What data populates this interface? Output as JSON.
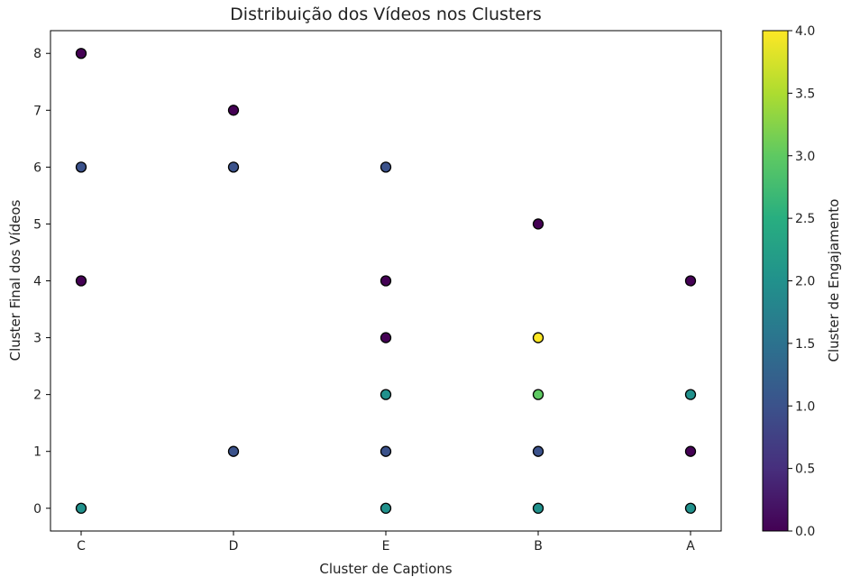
{
  "chart_data": {
    "type": "scatter",
    "title": "Distribuição dos Vídeos nos Clusters",
    "xlabel": "Cluster de Captions",
    "ylabel": "Cluster Final dos Vídeos",
    "categories": [
      "C",
      "D",
      "E",
      "B",
      "A"
    ],
    "yticks": [
      "0",
      "1",
      "2",
      "3",
      "4",
      "5",
      "6",
      "7",
      "8"
    ],
    "ylim": [
      -0.4,
      8.4
    ],
    "grid": false,
    "colorbar": {
      "label": "Cluster de Engajamento",
      "colormap": "viridis",
      "range": [
        0.0,
        4.0
      ],
      "ticks": [
        "0.0",
        "0.5",
        "1.0",
        "1.5",
        "2.0",
        "2.5",
        "3.0",
        "3.5",
        "4.0"
      ]
    },
    "points": [
      {
        "x": "C",
        "y": 8,
        "c": 0
      },
      {
        "x": "C",
        "y": 6,
        "c": 1
      },
      {
        "x": "C",
        "y": 4,
        "c": 0
      },
      {
        "x": "C",
        "y": 0,
        "c": 2
      },
      {
        "x": "D",
        "y": 7,
        "c": 0
      },
      {
        "x": "D",
        "y": 6,
        "c": 1
      },
      {
        "x": "D",
        "y": 1,
        "c": 1
      },
      {
        "x": "E",
        "y": 6,
        "c": 1
      },
      {
        "x": "E",
        "y": 4,
        "c": 0
      },
      {
        "x": "E",
        "y": 3,
        "c": 0
      },
      {
        "x": "E",
        "y": 2,
        "c": 2
      },
      {
        "x": "E",
        "y": 1,
        "c": 1
      },
      {
        "x": "E",
        "y": 0,
        "c": 2
      },
      {
        "x": "B",
        "y": 5,
        "c": 0
      },
      {
        "x": "B",
        "y": 3,
        "c": 4
      },
      {
        "x": "B",
        "y": 2,
        "c": 3
      },
      {
        "x": "B",
        "y": 1,
        "c": 1
      },
      {
        "x": "B",
        "y": 0,
        "c": 2
      },
      {
        "x": "A",
        "y": 4,
        "c": 0
      },
      {
        "x": "A",
        "y": 2,
        "c": 2
      },
      {
        "x": "A",
        "y": 1,
        "c": 0
      },
      {
        "x": "A",
        "y": 0,
        "c": 2
      }
    ]
  }
}
